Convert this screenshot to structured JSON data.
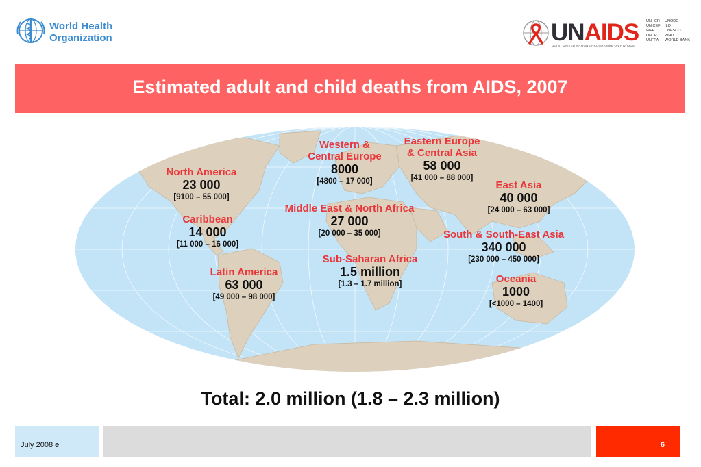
{
  "header": {
    "who_name_line1": "World Health",
    "who_name_line2": "Organization",
    "unaids_un": "UN",
    "unaids_aids": "AIDS",
    "unaids_tagline": "JOINT UNITED NATIONS PROGRAMME ON HIV/AIDS",
    "cosponsors_col1": "UNHCR\nUNICEF\nWFP\nUNDP\nUNFPA",
    "cosponsors_col2": "UNODC\nILO\nUNESCO\nWHO\nWORLD BANK"
  },
  "title": "Estimated adult and child deaths from AIDS, 2007",
  "regions": {
    "north_america": {
      "name": "North America",
      "value": "23 000",
      "range": "[9100 – 55 000]"
    },
    "caribbean": {
      "name": "Caribbean",
      "value": "14 000",
      "range": "[11 000 – 16 000]"
    },
    "latin_america": {
      "name": "Latin America",
      "value": "63 000",
      "range": "[49 000 – 98 000]"
    },
    "western_central_europe": {
      "name_line1": "Western &",
      "name_line2": "Central Europe",
      "value": "8000",
      "range": "[4800 – 17 000]"
    },
    "eastern_europe_central_asia": {
      "name_line1": "Eastern Europe",
      "name_line2": "& Central Asia",
      "value": "58 000",
      "range": "[41 000 – 88 000]"
    },
    "middle_east_north_africa": {
      "name": "Middle East & North Africa",
      "value": "27 000",
      "range": "[20 000 – 35 000]"
    },
    "sub_saharan_africa": {
      "name": "Sub-Saharan Africa",
      "value": "1.5 million",
      "range": "[1.3 – 1.7 million]"
    },
    "east_asia": {
      "name": "East Asia",
      "value": "40 000",
      "range": "[24 000 – 63 000]"
    },
    "south_southeast_asia": {
      "name": "South & South-East Asia",
      "value": "340 000",
      "range": "[230 000 – 450 000]"
    },
    "oceania": {
      "name": "Oceania",
      "value": "1000",
      "range": "[<1000 – 1400]"
    }
  },
  "total": "Total: 2.0 million (1.8 – 2.3 million)",
  "footer": {
    "date": "July 2008  e",
    "page": "6"
  },
  "colors": {
    "banner": "#ff6262",
    "region_name": "#e8363a",
    "ocean": "#c3e3f7",
    "land": "#ddd0bc",
    "footer_date_bg": "#cfe9f8",
    "footer_mid_bg": "#dcdcdc",
    "footer_page_bg": "#ff2a00"
  }
}
